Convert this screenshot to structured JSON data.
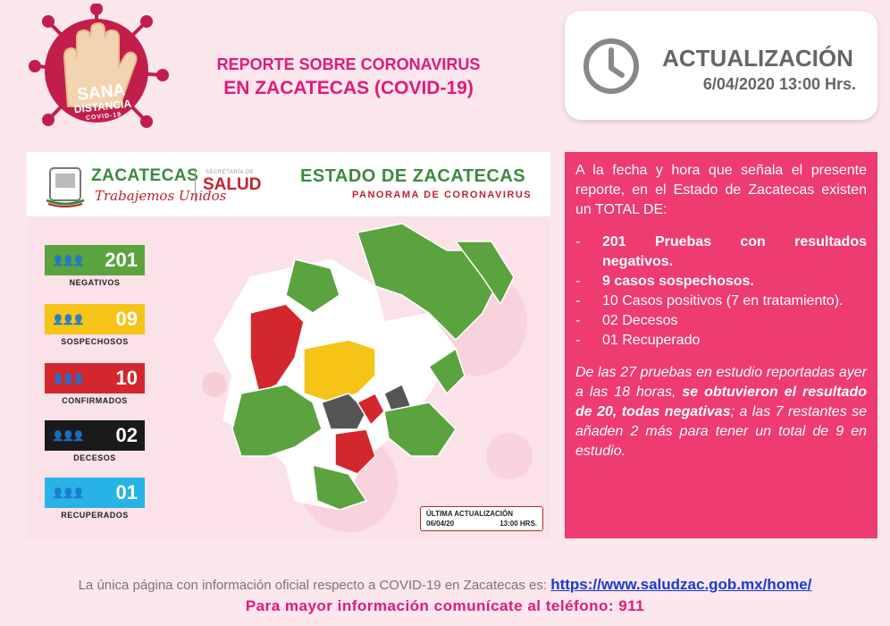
{
  "logo": {
    "line1": "SANA",
    "line2": "DISTANCIA",
    "line3": "COVID-19"
  },
  "header": {
    "title_line1": "REPORTE SOBRE CORONAVIRUS",
    "title_line2": "EN ZACATECAS  (COVID-19)"
  },
  "update": {
    "icon": "clock-icon",
    "title": "ACTUALIZACIÓN",
    "date": "6/04/2020 13:00 Hrs."
  },
  "panel": {
    "brand_name": "ZACATECAS",
    "brand_sub": "Trabajemos Unidos",
    "salud_top": "SECRETARÍA DE",
    "salud": "SALUD",
    "estado_title": "ESTADO DE ZACATECAS",
    "estado_sub": "PANORAMA DE CORONAVIRUS",
    "stats": [
      {
        "value": "201",
        "label": "NEGATIVOS",
        "color": "#5aa33f"
      },
      {
        "value": "09",
        "label": "SOSPECHOSOS",
        "color": "#f5c417"
      },
      {
        "value": "10",
        "label": "CONFIRMADOS",
        "color": "#d3272e"
      },
      {
        "value": "02",
        "label": "DECESOS",
        "color": "#1a1a1a"
      },
      {
        "value": "01",
        "label": "RECUPERADOS",
        "color": "#27b3e6"
      }
    ],
    "last_update_title": "ÚLTIMA ACTUALIZACIÓN",
    "last_update_date": "06/04/20",
    "last_update_time": "13:00 HRS."
  },
  "info": {
    "intro": "A la fecha y hora que señala el presente reporte, en el Estado de Zacatecas existen un TOTAL DE:",
    "items": [
      {
        "text": "201 Pruebas con resultados negativos.",
        "bold": true
      },
      {
        "text": "9 casos sospechosos.",
        "bold": true
      },
      {
        "text": "10 Casos positivos (7 en tratamiento).",
        "bold": false
      },
      {
        "text": "02 Decesos",
        "bold": false
      },
      {
        "text": "01 Recuperado",
        "bold": false
      }
    ],
    "dash": "-",
    "note_part1": "De las 27 pruebas en estudio reportadas ayer a las 18 horas, ",
    "note_bold": "se obtuvieron el resultado de 20, todas negativas",
    "note_part2": "; a las 7 restantes se añaden 2 más para tener un total de 9 en estudio."
  },
  "footer": {
    "text": "La única página con información oficial respecto a COVID-19 en Zacatecas es: ",
    "link": "https://www.saludzac.gob.mx/home/",
    "phone_line": "Para mayor información comunícate al teléfono: 911"
  },
  "colors": {
    "accent_pink": "#e0197d",
    "box_pink": "#ee3b70",
    "green": "#5aa33f",
    "yellow": "#f5c417",
    "red": "#d3272e",
    "black": "#1a1a1a",
    "blue": "#27b3e6"
  }
}
